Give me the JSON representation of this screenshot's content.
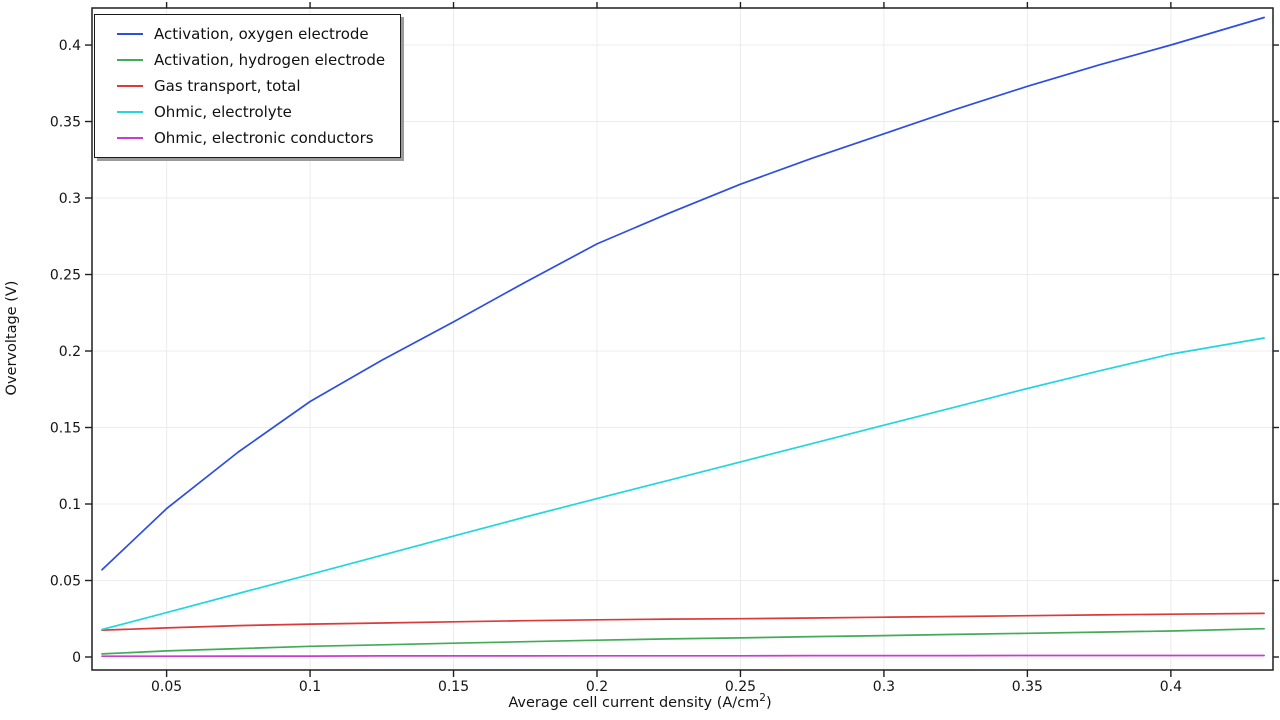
{
  "window": {
    "background": "#ffffff"
  },
  "chart_data": {
    "type": "line",
    "title": "",
    "xlabel": "Average cell current density (A/cm²)",
    "xlabel_parts": {
      "pre": "Average cell current density (A/cm",
      "sup": "2",
      "post": ")"
    },
    "ylabel": "Overvoltage (V)",
    "xlim": [
      0.024,
      0.4356
    ],
    "ylim": [
      -0.0085,
      0.4242
    ],
    "xticks": [
      0.05,
      0.1,
      0.15,
      0.2,
      0.25,
      0.3,
      0.35,
      0.4
    ],
    "yticks": [
      0,
      0.05,
      0.1,
      0.15,
      0.2,
      0.25,
      0.3,
      0.35,
      0.4
    ],
    "grid": true,
    "grid_color": "#ececec",
    "axis_color": "#1f1f1f",
    "tick_label_color": "#141414",
    "legend_position": "top-left",
    "legend_style": {
      "border_color": "#1a1a1a",
      "background": "#ffffff",
      "shadow_color": "#9b9b9b"
    },
    "x": [
      0.0275,
      0.05,
      0.075,
      0.1,
      0.125,
      0.15,
      0.175,
      0.2,
      0.225,
      0.25,
      0.275,
      0.3,
      0.325,
      0.35,
      0.375,
      0.4,
      0.4325
    ],
    "series": [
      {
        "id": "activation-oxygen-electrode",
        "name": "Activation, oxygen electrode",
        "color": "#2d4ee0",
        "y": [
          0.057,
          0.097,
          0.134,
          0.167,
          0.194,
          0.219,
          0.245,
          0.27,
          0.29,
          0.309,
          0.326,
          0.342,
          0.358,
          0.373,
          0.387,
          0.4,
          0.418
        ]
      },
      {
        "id": "activation-hydrogen-electrode",
        "name": "Activation, hydrogen electrode",
        "color": "#43ab58",
        "y": [
          0.002,
          0.004,
          0.0055,
          0.007,
          0.008,
          0.009,
          0.01,
          0.011,
          0.0118,
          0.0125,
          0.0133,
          0.014,
          0.0148,
          0.0155,
          0.0163,
          0.017,
          0.0185
        ]
      },
      {
        "id": "gas-transport-total",
        "name": "Gas transport, total",
        "color": "#dc3a3a",
        "y": [
          0.0175,
          0.019,
          0.0205,
          0.0215,
          0.0222,
          0.023,
          0.0237,
          0.0243,
          0.0248,
          0.025,
          0.0255,
          0.026,
          0.0265,
          0.027,
          0.0275,
          0.028,
          0.0285
        ]
      },
      {
        "id": "ohmic-electrolyte",
        "name": "Ohmic, electrolyte",
        "color": "#22d6dd",
        "y": [
          0.018,
          0.029,
          0.0415,
          0.054,
          0.0665,
          0.079,
          0.0915,
          0.1035,
          0.1155,
          0.1275,
          0.1395,
          0.1515,
          0.1635,
          0.1755,
          0.187,
          0.198,
          0.2085
        ]
      },
      {
        "id": "ohmic-electronic-conductors",
        "name": "Ohmic, electronic conductors",
        "color": "#ca3bd0",
        "y": [
          0.0005,
          0.0005,
          0.0006,
          0.0006,
          0.0007,
          0.0007,
          0.0007,
          0.0008,
          0.0008,
          0.0008,
          0.0009,
          0.0009,
          0.0009,
          0.001,
          0.001,
          0.001,
          0.001
        ]
      }
    ]
  }
}
